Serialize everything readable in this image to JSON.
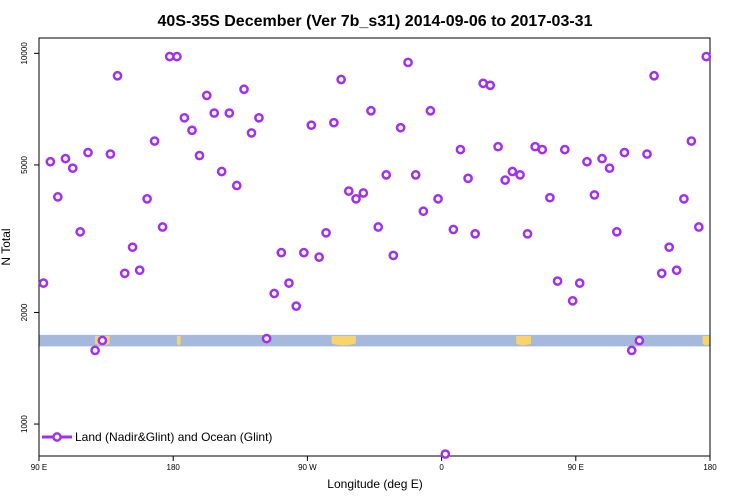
{
  "chart_data": {
    "type": "scatter",
    "title": "40S-35S December (Ver 7b_s31)   2014-09-06 to 2017-03-31",
    "xlabel": "Longitude (deg E)",
    "ylabel": "N Total",
    "xlim": [
      90,
      450
    ],
    "ylim": [
      820,
      11000
    ],
    "yscale": "log",
    "x_ticks": [
      {
        "value": 90,
        "label": "90 E"
      },
      {
        "value": 162,
        "label": "180"
      },
      {
        "value": 234,
        "label": "90 W"
      },
      {
        "value": 306,
        "label": "0"
      },
      {
        "value": 378,
        "label": "90 E"
      },
      {
        "value": 450,
        "label": "180"
      }
    ],
    "y_ticks": [
      {
        "value": 1000,
        "label": "1000"
      },
      {
        "value": 2000,
        "label": "2000"
      },
      {
        "value": 5000,
        "label": "5000"
      },
      {
        "value": 10000,
        "label": "10000"
      }
    ],
    "grid": false,
    "legend_position": "bottom-left",
    "band": {
      "ymin": 1620,
      "ymax": 1740,
      "color": "#a4b9dc",
      "land_color": "#f9d46a"
    },
    "series": [
      {
        "name": "Land (Nadir&Glint) and Ocean (Glint)",
        "color": "#a12ff0",
        "x": [
          92.4,
          96.1,
          100.1,
          104.2,
          108.1,
          112.1,
          116.3,
          120.1,
          124.0,
          128.3,
          132.1,
          136.0,
          140.2,
          144.0,
          148.0,
          152.0,
          156.3,
          160.1,
          164.0,
          168.0,
          172.1,
          176.1,
          180.0,
          184.0,
          188.0,
          192.1,
          196.1,
          200.0,
          204.0,
          208.0,
          212.1,
          216.2,
          220.0,
          224.1,
          228.0,
          232.1,
          236.1,
          240.3,
          244.0,
          248.2,
          252.1,
          256.2,
          260.1,
          264.0,
          268.1,
          272.0,
          276.3,
          280.1,
          284.0,
          288.0,
          292.1,
          296.2,
          300.0,
          304.1,
          308.0,
          312.3,
          316.1,
          320.2,
          324.0,
          328.3,
          332.1,
          336.3,
          340.1,
          344.0,
          348.1,
          352.1,
          356.2,
          360.0,
          364.1,
          368.2,
          372.1,
          376.3,
          380.1,
          384.0,
          388.0,
          392.1,
          396.1,
          400.0,
          404.1,
          408.0,
          412.1,
          416.2,
          420.0,
          424.1,
          428.1,
          432.1,
          436.0,
          440.0,
          444.0,
          448.0
        ],
        "y": [
          2400,
          5100,
          4100,
          5200,
          4900,
          3300,
          5400,
          1580,
          1680,
          5350,
          8700,
          2550,
          3000,
          2600,
          4050,
          5800,
          3400,
          9800,
          9800,
          6700,
          6200,
          5300,
          7700,
          6900,
          4800,
          6900,
          4400,
          8000,
          6100,
          6700,
          1700,
          2250,
          2900,
          2400,
          2080,
          2900,
          6400,
          2820,
          3280,
          6500,
          8500,
          4250,
          4050,
          4200,
          7000,
          3400,
          4700,
          2850,
          6300,
          9450,
          4700,
          3750,
          7000,
          4050,
          830,
          3350,
          5500,
          4600,
          3260,
          8300,
          8200,
          5600,
          4550,
          4800,
          4700,
          3260,
          5600,
          5500,
          4080,
          2430,
          5500,
          2150,
          2400,
          5100,
          4150,
          5200,
          4900,
          3300,
          5400,
          1580,
          1680,
          5350,
          8700,
          2550,
          3000,
          2600,
          4050,
          5800,
          3400,
          9800
        ]
      }
    ]
  }
}
